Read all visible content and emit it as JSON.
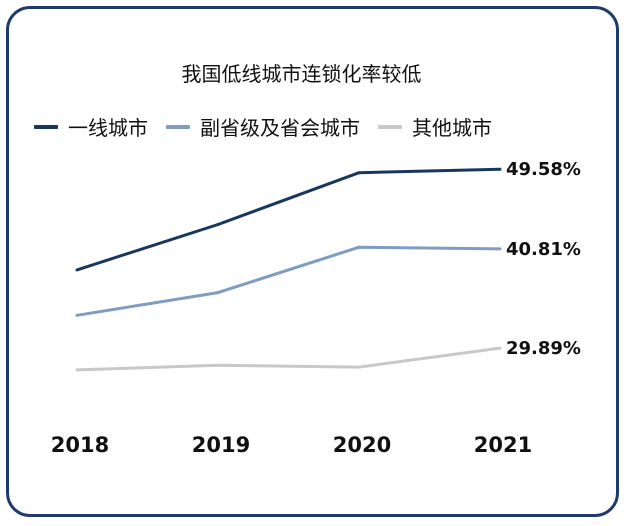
{
  "chart_data": {
    "type": "line",
    "title": "我国低线城市连锁化率较低",
    "categories": [
      "2018",
      "2019",
      "2020",
      "2021"
    ],
    "ylim": [
      20,
      55
    ],
    "grid": false,
    "legend_position": "top",
    "series": [
      {
        "name": "一线城市",
        "color": "#17375e",
        "values": [
          38.5,
          43.5,
          49.2,
          49.58
        ],
        "end_label": "49.58%"
      },
      {
        "name": "副省级及省会城市",
        "color": "#7f9cc2",
        "values": [
          33.5,
          36.0,
          41.0,
          40.81
        ],
        "end_label": "40.81%"
      },
      {
        "name": "其他城市",
        "color": "#c8c8c8",
        "values": [
          27.5,
          28.0,
          27.8,
          29.89
        ],
        "end_label": "29.89%"
      }
    ]
  }
}
